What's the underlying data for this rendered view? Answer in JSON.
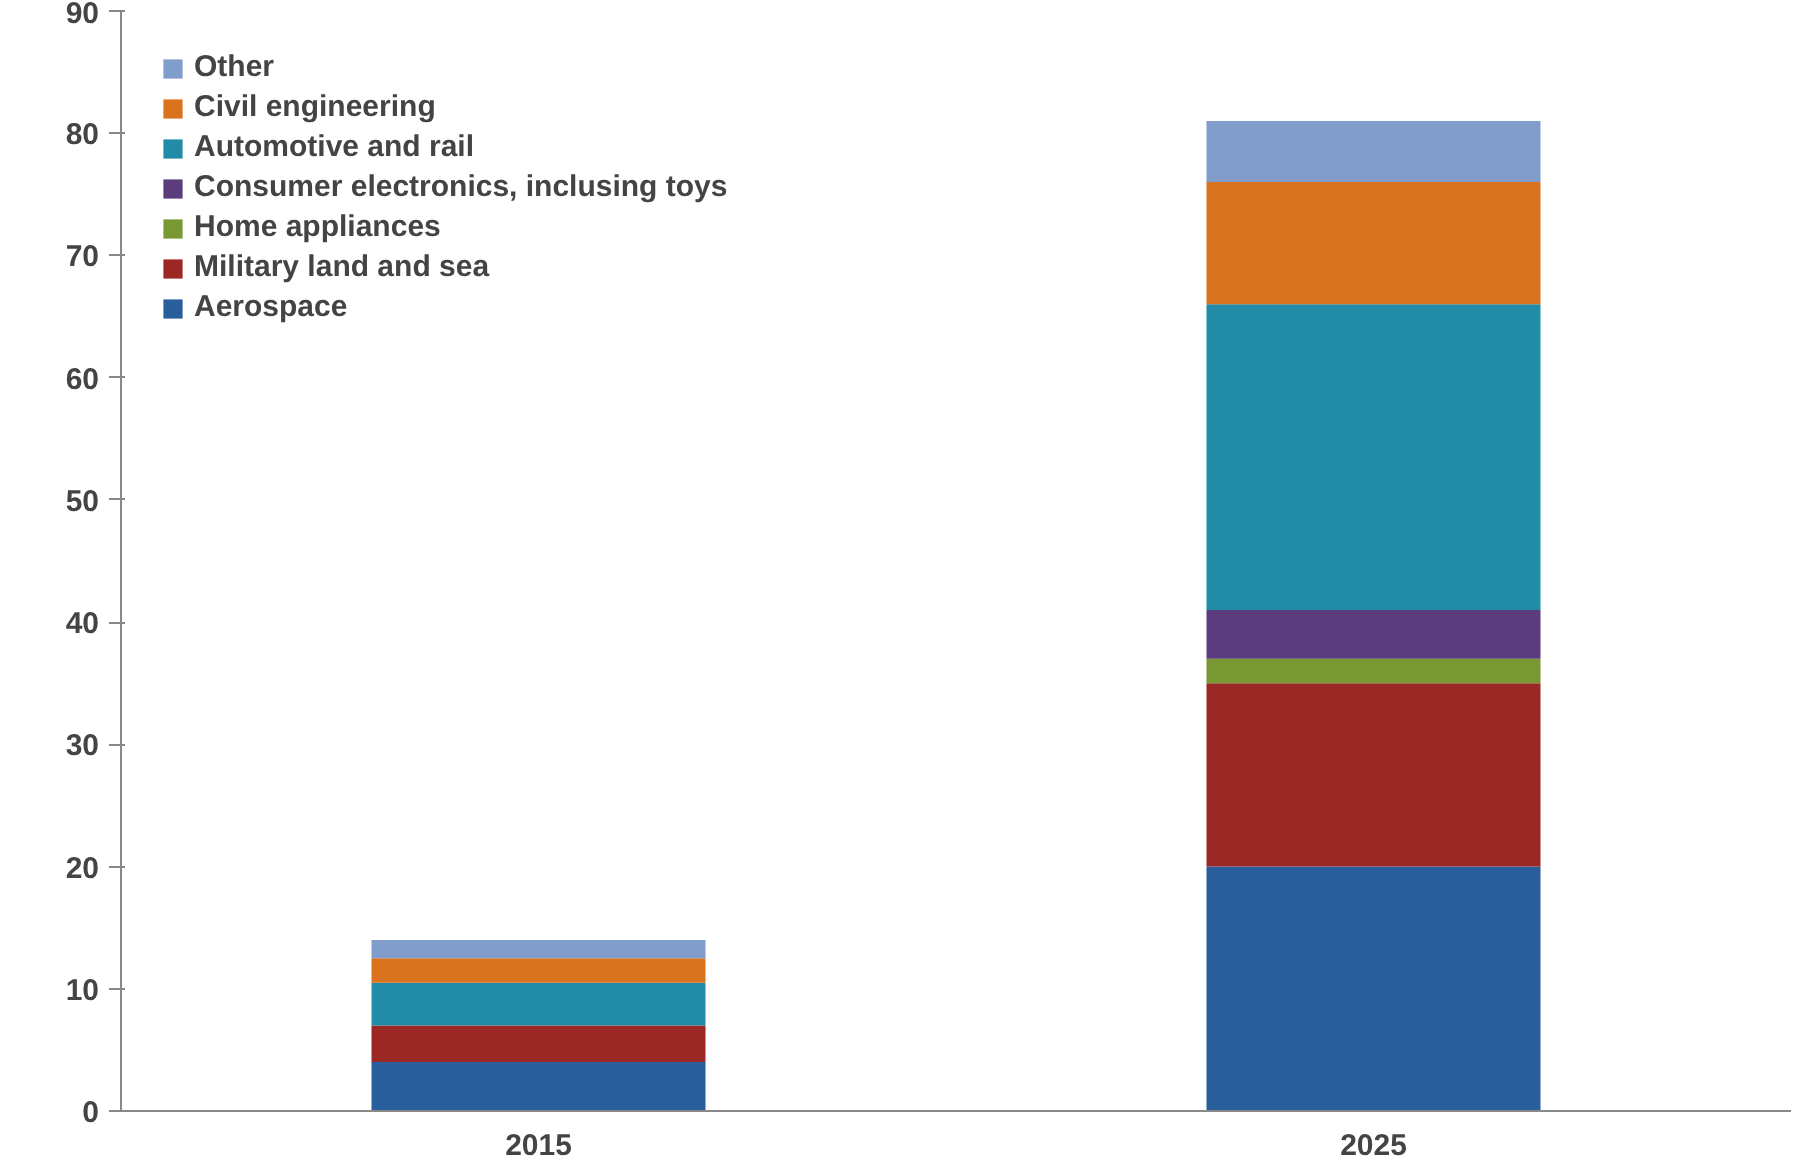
{
  "chart_data": {
    "type": "bar",
    "stacked": true,
    "categories": [
      "2015",
      "2025"
    ],
    "series": [
      {
        "name": "Aerospace",
        "color": "#2a5d9c",
        "values": [
          4,
          20
        ]
      },
      {
        "name": "Military land and sea",
        "color": "#9c2825",
        "values": [
          3,
          15
        ]
      },
      {
        "name": "Home appliances",
        "color": "#789833",
        "values": [
          0,
          2
        ]
      },
      {
        "name": "Consumer electronics, inclusing toys",
        "color": "#5b3d7e",
        "values": [
          0,
          4
        ]
      },
      {
        "name": "Automotive and rail",
        "color": "#228ba6",
        "values": [
          3.5,
          25
        ]
      },
      {
        "name": "Civil engineering",
        "color": "#d9731e",
        "values": [
          2,
          10
        ]
      },
      {
        "name": "Other",
        "color": "#819dcb",
        "values": [
          1.5,
          5
        ]
      }
    ],
    "ylim": [
      0,
      90
    ],
    "yticks": [
      0,
      10,
      20,
      30,
      40,
      50,
      60,
      70,
      80,
      90
    ],
    "grid": false,
    "legend": "top left"
  }
}
